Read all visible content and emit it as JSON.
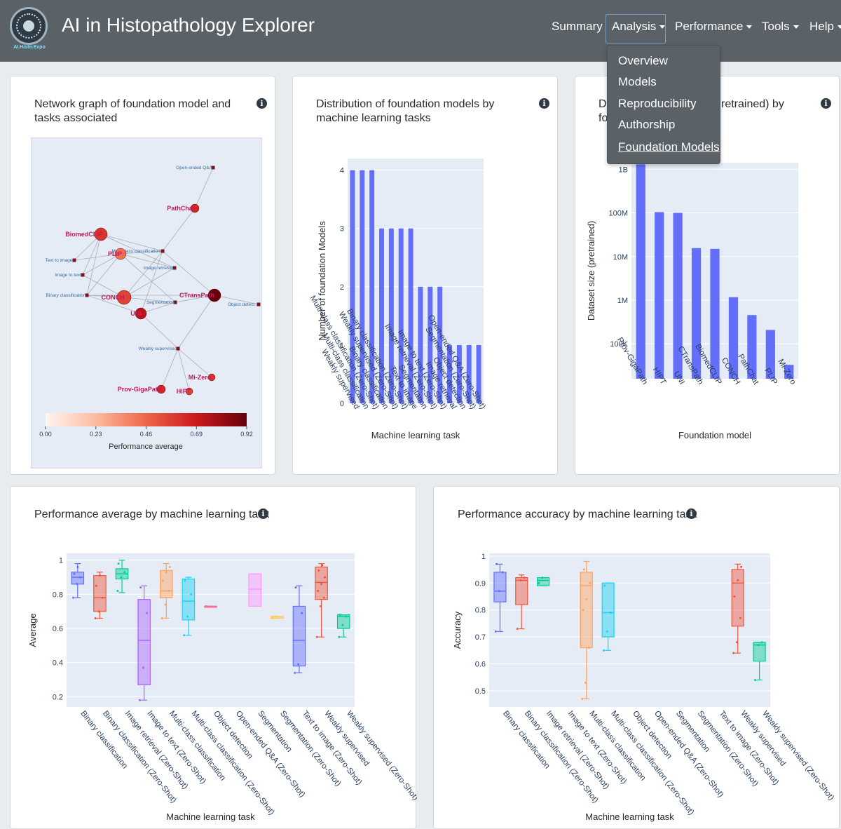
{
  "navbar": {
    "logo_text": "AI.Histo.Expo",
    "brand": "AI in Histopathology Explorer",
    "items": [
      {
        "label": "Summary",
        "caret": false
      },
      {
        "label": "Analysis",
        "caret": true
      },
      {
        "label": "Performance",
        "caret": true
      },
      {
        "label": "Tools",
        "caret": true
      },
      {
        "label": "Help",
        "caret": true
      }
    ]
  },
  "dropdown": {
    "items": [
      "Overview",
      "Models",
      "Reproducibility",
      "Authorship",
      "Foundation Models"
    ]
  },
  "icons": {
    "info": "info-icon",
    "caret": "chevron-down-icon"
  },
  "cards": {
    "network": {
      "title": "Network graph of foundation model and tasks associated",
      "colorbar_label": "Performance average",
      "colorbar_ticks": [
        "0.00",
        "0.23",
        "0.46",
        "0.69",
        "0.92"
      ],
      "model_nodes": [
        "BiomedCLIP",
        "PLIP",
        "PathChat",
        "CONCH",
        "UNI",
        "CTransPath",
        "Mi-Zero",
        "Prov-GigaPath",
        "HIPT"
      ],
      "task_nodes": [
        "Open-ended Q&A",
        "Multi-class classification",
        "Text to image",
        "Image to text",
        "Image retrieval",
        "Binary classification",
        "Segmentation",
        "Object detect",
        "Weakly supervised"
      ]
    },
    "distribution": {
      "title": "Distribution of foundation models by machine learning tasks"
    },
    "dataset": {
      "title_left": "Di",
      "title_right": "retrained) by",
      "title_line2": "fo"
    },
    "perf_avg": {
      "title": "Performance average by machine learning task"
    },
    "perf_acc": {
      "title": "Performance accuracy by machine learning task"
    }
  },
  "chart_data": [
    {
      "type": "bar",
      "title": "Distribution of foundation models by machine learning tasks",
      "xlabel": "Machine learning task",
      "ylabel": "Number of foundation Models",
      "categories": [
        "Weakly supervised",
        "Multi-class classification",
        "Multi-class classification (Zero-Shot)",
        "Binary classification",
        "Weakly supervised (Zero-Shot)",
        "Binary classification (Zero-Shot)",
        "Text to image",
        "Segmentation",
        "Image retrieval (Zero-Shot)",
        "Image to text (Zero-Shot)",
        "Image retrieval",
        "Object detection",
        "Segmentation (Zero-Shot)",
        "Open-ended Q&A (Zero-Shot)"
      ],
      "values": [
        4,
        4,
        4,
        3,
        3,
        3,
        3,
        2,
        2,
        2,
        1,
        1,
        1,
        1
      ],
      "yticks": [
        "0",
        "1",
        "2",
        "3",
        "4"
      ],
      "ylim": [
        0,
        4.2
      ],
      "color": "#636efa"
    },
    {
      "type": "bar",
      "title": "Dataset size (pretrained) by foundation model",
      "xlabel": "Foundation model",
      "ylabel": "Dataset size (pretrained)",
      "yscale": "log",
      "categories": [
        "Prov-GigaPath",
        "HIPT",
        "UNI",
        "CTransPath",
        "BiomedCLIP",
        "CONCH",
        "PathChat",
        "PLIP",
        "Mi-Zero"
      ],
      "values": [
        1300000000,
        104000000,
        100000000,
        15600000,
        15000000,
        1170000,
        456000,
        208000,
        33000
      ],
      "ytick_values": [
        100000,
        1000000,
        10000000,
        100000000,
        1000000000
      ],
      "yticks": [
        "100K",
        "1M",
        "10M",
        "100M",
        "1B"
      ],
      "ylim_log10": [
        4.2,
        9.15
      ],
      "color": "#636efa"
    },
    {
      "type": "box",
      "title": "Performance average by machine learning task",
      "xlabel": "Machine learning task",
      "ylabel": "Average",
      "ylim": [
        0.14,
        1.04
      ],
      "yticks": [
        "0.2",
        "0.4",
        "0.6",
        "0.8",
        "1"
      ],
      "ytick_values": [
        0.2,
        0.4,
        0.6,
        0.8,
        1.0
      ],
      "series": [
        {
          "name": "Binary classification",
          "min": 0.78,
          "q1": 0.86,
          "median": 0.9,
          "q3": 0.93,
          "max": 0.98,
          "color": "#636efa",
          "points": [
            0.78,
            0.86,
            0.9,
            0.92,
            0.96
          ]
        },
        {
          "name": "Binary classification (Zero-Shot)",
          "min": 0.66,
          "q1": 0.7,
          "median": 0.78,
          "q3": 0.91,
          "max": 0.93,
          "color": "#ef553b",
          "points": [
            0.66,
            0.7,
            0.78,
            0.85,
            0.91
          ]
        },
        {
          "name": "Image retrieval (Zero-Shot)",
          "min": 0.81,
          "q1": 0.89,
          "median": 0.92,
          "q3": 0.95,
          "max": 1.0,
          "color": "#00cc96",
          "points": [
            0.82,
            0.9,
            0.93,
            0.98
          ]
        },
        {
          "name": "Image to text (Zero-Shot)",
          "min": 0.18,
          "q1": 0.27,
          "median": 0.53,
          "q3": 0.77,
          "max": 0.85,
          "color": "#ab63fa",
          "points": [
            0.18,
            0.37,
            0.69,
            0.84
          ]
        },
        {
          "name": "Multi-class classification",
          "min": 0.66,
          "q1": 0.78,
          "median": 0.82,
          "q3": 0.94,
          "max": 0.98,
          "color": "#ffa15a",
          "points": [
            0.66,
            0.74,
            0.82,
            0.88,
            0.93,
            0.96
          ]
        },
        {
          "name": "Multi-class classification (Zero-Shot)",
          "min": 0.56,
          "q1": 0.65,
          "median": 0.76,
          "q3": 0.89,
          "max": 0.9,
          "color": "#19d3f3",
          "points": [
            0.56,
            0.67,
            0.8,
            0.88
          ]
        },
        {
          "name": "Object detection",
          "min": 0.73,
          "q1": 0.73,
          "median": 0.73,
          "q3": 0.73,
          "max": 0.73,
          "color": "#ff6692",
          "points": [
            0.73
          ]
        },
        {
          "name": "Open-ended Q&A (Zero-Shot)",
          "min": null,
          "q1": null,
          "median": null,
          "q3": null,
          "max": null,
          "color": "#b6e880",
          "points": []
        },
        {
          "name": "Segmentation",
          "min": 0.73,
          "q1": 0.73,
          "median": 0.83,
          "q3": 0.92,
          "max": 0.92,
          "color": "#ff97ff",
          "points": []
        },
        {
          "name": "Segmentation (Zero-Shot)",
          "min": 0.66,
          "q1": 0.66,
          "median": 0.67,
          "q3": 0.67,
          "max": 0.67,
          "color": "#fecb52",
          "points": [
            0.66,
            0.67
          ]
        },
        {
          "name": "Text to image (Zero-Shot)",
          "min": 0.34,
          "q1": 0.38,
          "median": 0.53,
          "q3": 0.73,
          "max": 0.85,
          "color": "#636efa",
          "points": [
            0.34,
            0.39,
            0.69,
            0.84
          ]
        },
        {
          "name": "Weakly supervised",
          "min": 0.55,
          "q1": 0.77,
          "median": 0.87,
          "q3": 0.96,
          "max": 0.98,
          "color": "#ef553b",
          "points": [
            0.55,
            0.73,
            0.78,
            0.82,
            0.86,
            0.9,
            0.94,
            0.97
          ]
        },
        {
          "name": "Weakly supervised (Zero-Shot)",
          "min": 0.55,
          "q1": 0.6,
          "median": 0.67,
          "q3": 0.68,
          "max": 0.68,
          "color": "#00cc96",
          "points": [
            0.55,
            0.62,
            0.67,
            0.68
          ]
        }
      ]
    },
    {
      "type": "box",
      "title": "Performance accuracy by machine learning task",
      "xlabel": "Machine learning task",
      "ylabel": "Accuracy",
      "ylim": [
        0.44,
        1.01
      ],
      "yticks": [
        "0.5",
        "0.6",
        "0.7",
        "0.8",
        "0.9",
        "1"
      ],
      "ytick_values": [
        0.5,
        0.6,
        0.7,
        0.8,
        0.9,
        1.0
      ],
      "series": [
        {
          "name": "Binary classification",
          "min": 0.72,
          "q1": 0.83,
          "median": 0.87,
          "q3": 0.94,
          "max": 0.97,
          "color": "#636efa",
          "points": [
            0.72,
            0.87,
            0.94,
            0.97
          ]
        },
        {
          "name": "Binary classification (Zero-Shot)",
          "min": 0.73,
          "q1": 0.82,
          "median": 0.91,
          "q3": 0.92,
          "max": 0.93,
          "color": "#ef553b",
          "points": [
            0.73,
            0.91,
            0.92
          ]
        },
        {
          "name": "Image retrieval (Zero-Shot)",
          "min": 0.89,
          "q1": 0.89,
          "median": 0.91,
          "q3": 0.92,
          "max": 0.92,
          "color": "#00cc96",
          "points": [
            0.9,
            0.92
          ]
        },
        {
          "name": "Image to text (Zero-Shot)",
          "min": null,
          "q1": null,
          "median": null,
          "q3": null,
          "max": null,
          "color": "#ab63fa",
          "points": []
        },
        {
          "name": "Multi-class classification",
          "min": 0.47,
          "q1": 0.66,
          "median": 0.89,
          "q3": 0.94,
          "max": 0.98,
          "color": "#ffa15a",
          "points": [
            0.47,
            0.53,
            0.66,
            0.8,
            0.84,
            0.9,
            0.95
          ]
        },
        {
          "name": "Multi-class classification (Zero-Shot)",
          "min": 0.65,
          "q1": 0.7,
          "median": 0.79,
          "q3": 0.9,
          "max": 0.9,
          "color": "#19d3f3",
          "points": [
            0.65,
            0.72,
            0.79,
            0.89
          ]
        },
        {
          "name": "Object detection",
          "min": null,
          "q1": null,
          "median": null,
          "q3": null,
          "max": null,
          "color": "#ff6692",
          "points": []
        },
        {
          "name": "Open-ended Q&A (Zero-Shot)",
          "min": null,
          "q1": null,
          "median": null,
          "q3": null,
          "max": null,
          "color": "#b6e880",
          "points": []
        },
        {
          "name": "Segmentation",
          "min": null,
          "q1": null,
          "median": null,
          "q3": null,
          "max": null,
          "color": "#ff97ff",
          "points": []
        },
        {
          "name": "Segmentation (Zero-Shot)",
          "min": null,
          "q1": null,
          "median": null,
          "q3": null,
          "max": null,
          "color": "#fecb52",
          "points": []
        },
        {
          "name": "Text to image (Zero-Shot)",
          "min": null,
          "q1": null,
          "median": null,
          "q3": null,
          "max": null,
          "color": "#636efa",
          "points": []
        },
        {
          "name": "Weakly supervised",
          "min": 0.64,
          "q1": 0.74,
          "median": 0.9,
          "q3": 0.95,
          "max": 0.97,
          "color": "#ef553b",
          "points": [
            0.64,
            0.68,
            0.77,
            0.85,
            0.91,
            0.96
          ]
        },
        {
          "name": "Weakly supervised (Zero-Shot)",
          "min": 0.54,
          "q1": 0.61,
          "median": 0.67,
          "q3": 0.68,
          "max": 0.68,
          "color": "#00cc96",
          "points": [
            0.54,
            0.67,
            0.68
          ]
        }
      ]
    }
  ]
}
